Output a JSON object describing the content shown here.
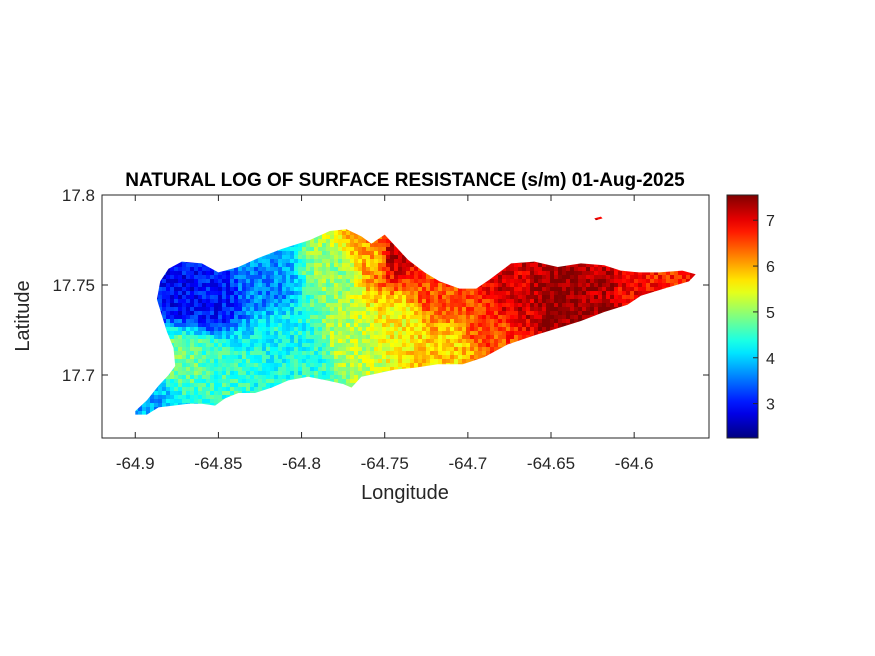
{
  "chart_data": {
    "type": "heatmap",
    "title": "NATURAL LOG OF SURFACE RESISTANCE (s/m) 01-Aug-2025",
    "xlabel": "Longitude",
    "ylabel": "Latitude",
    "xlim": [
      -64.92,
      -64.555
    ],
    "ylim": [
      17.665,
      17.8
    ],
    "x_ticks": [
      -64.9,
      -64.85,
      -64.8,
      -64.75,
      -64.7,
      -64.65,
      -64.6
    ],
    "x_tick_labels": [
      "-64.9",
      "-64.85",
      "-64.8",
      "-64.75",
      "-64.7",
      "-64.65",
      "-64.6"
    ],
    "y_ticks": [
      17.7,
      17.75,
      17.8
    ],
    "y_tick_labels": [
      "17.7",
      "17.75",
      "17.8"
    ],
    "colorbar": {
      "colormap": "jet",
      "range": [
        2.25,
        7.55
      ],
      "ticks": [
        3,
        4,
        5,
        6,
        7
      ],
      "tick_labels": [
        "3",
        "4",
        "5",
        "6",
        "7"
      ]
    },
    "grid": false,
    "region_outline": [
      [
        -64.9,
        17.68
      ],
      [
        -64.893,
        17.686
      ],
      [
        -64.886,
        17.694
      ],
      [
        -64.88,
        17.7
      ],
      [
        -64.876,
        17.705
      ],
      [
        -64.877,
        17.715
      ],
      [
        -64.881,
        17.724
      ],
      [
        -64.884,
        17.733
      ],
      [
        -64.887,
        17.742
      ],
      [
        -64.885,
        17.752
      ],
      [
        -64.88,
        17.759
      ],
      [
        -64.872,
        17.763
      ],
      [
        -64.86,
        17.762
      ],
      [
        -64.85,
        17.757
      ],
      [
        -64.838,
        17.76
      ],
      [
        -64.826,
        17.765
      ],
      [
        -64.812,
        17.77
      ],
      [
        -64.795,
        17.775
      ],
      [
        -64.783,
        17.78
      ],
      [
        -64.773,
        17.781
      ],
      [
        -64.764,
        17.777
      ],
      [
        -64.758,
        17.773
      ],
      [
        -64.75,
        17.778
      ],
      [
        -64.744,
        17.772
      ],
      [
        -64.736,
        17.764
      ],
      [
        -64.726,
        17.757
      ],
      [
        -64.717,
        17.752
      ],
      [
        -64.705,
        17.748
      ],
      [
        -64.695,
        17.748
      ],
      [
        -64.687,
        17.753
      ],
      [
        -64.674,
        17.762
      ],
      [
        -64.66,
        17.763
      ],
      [
        -64.646,
        17.76
      ],
      [
        -64.632,
        17.762
      ],
      [
        -64.618,
        17.761
      ],
      [
        -64.608,
        17.758
      ],
      [
        -64.597,
        17.757
      ],
      [
        -64.585,
        17.757
      ],
      [
        -64.571,
        17.758
      ],
      [
        -64.563,
        17.756
      ],
      [
        -64.567,
        17.752
      ],
      [
        -64.582,
        17.748
      ],
      [
        -64.596,
        17.744
      ],
      [
        -64.604,
        17.739
      ],
      [
        -64.618,
        17.735
      ],
      [
        -64.632,
        17.73
      ],
      [
        -64.646,
        17.726
      ],
      [
        -64.66,
        17.722
      ],
      [
        -64.676,
        17.717
      ],
      [
        -64.69,
        17.71
      ],
      [
        -64.703,
        17.706
      ],
      [
        -64.718,
        17.706
      ],
      [
        -64.732,
        17.704
      ],
      [
        -64.744,
        17.703
      ],
      [
        -64.754,
        17.701
      ],
      [
        -64.764,
        17.699
      ],
      [
        -64.77,
        17.693
      ],
      [
        -64.775,
        17.695
      ],
      [
        -64.785,
        17.697
      ],
      [
        -64.796,
        17.699
      ],
      [
        -64.808,
        17.697
      ],
      [
        -64.818,
        17.693
      ],
      [
        -64.828,
        17.69
      ],
      [
        -64.838,
        17.69
      ],
      [
        -64.846,
        17.687
      ],
      [
        -64.852,
        17.683
      ],
      [
        -64.86,
        17.684
      ],
      [
        -64.868,
        17.684
      ],
      [
        -64.877,
        17.683
      ],
      [
        -64.886,
        17.682
      ],
      [
        -64.893,
        17.678
      ],
      [
        -64.9,
        17.678
      ]
    ],
    "islet_outline": [
      [
        -64.624,
        17.787
      ],
      [
        -64.62,
        17.788
      ],
      [
        -64.619,
        17.787
      ],
      [
        -64.623,
        17.786
      ]
    ],
    "field_control_points": [
      {
        "lon": -64.895,
        "lat": 17.68,
        "value": 3.8
      },
      {
        "lon": -64.87,
        "lat": 17.745,
        "value": 2.9
      },
      {
        "lon": -64.855,
        "lat": 17.74,
        "value": 3.0
      },
      {
        "lon": -64.87,
        "lat": 17.71,
        "value": 4.8
      },
      {
        "lon": -64.85,
        "lat": 17.705,
        "value": 4.5
      },
      {
        "lon": -64.82,
        "lat": 17.75,
        "value": 3.6
      },
      {
        "lon": -64.81,
        "lat": 17.72,
        "value": 4.3
      },
      {
        "lon": -64.8,
        "lat": 17.71,
        "value": 4.4
      },
      {
        "lon": -64.78,
        "lat": 17.755,
        "value": 5.0
      },
      {
        "lon": -64.77,
        "lat": 17.72,
        "value": 5.2
      },
      {
        "lon": -64.755,
        "lat": 17.765,
        "value": 6.0
      },
      {
        "lon": -64.745,
        "lat": 17.765,
        "value": 7.2
      },
      {
        "lon": -64.74,
        "lat": 17.73,
        "value": 5.6
      },
      {
        "lon": -64.72,
        "lat": 17.745,
        "value": 6.5
      },
      {
        "lon": -64.71,
        "lat": 17.715,
        "value": 5.8
      },
      {
        "lon": -64.69,
        "lat": 17.725,
        "value": 6.5
      },
      {
        "lon": -64.67,
        "lat": 17.745,
        "value": 7.1
      },
      {
        "lon": -64.645,
        "lat": 17.745,
        "value": 7.5
      },
      {
        "lon": -64.62,
        "lat": 17.745,
        "value": 7.3
      },
      {
        "lon": -64.6,
        "lat": 17.75,
        "value": 6.9
      },
      {
        "lon": -64.575,
        "lat": 17.755,
        "value": 6.7
      },
      {
        "lon": -64.622,
        "lat": 17.787,
        "value": 7.0
      }
    ]
  }
}
